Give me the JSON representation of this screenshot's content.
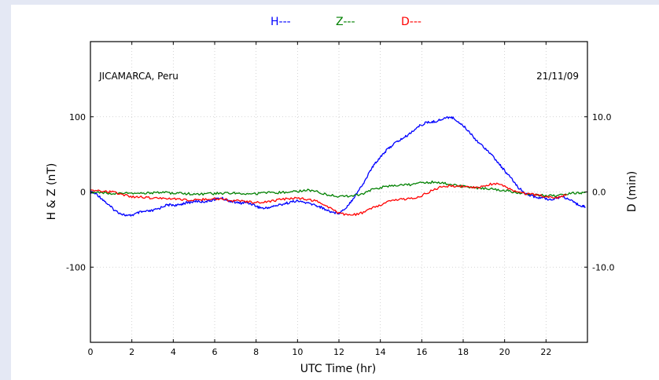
{
  "chart_data": {
    "type": "line",
    "station": "JICAMARCA, Peru",
    "date": "21/11/09",
    "xlabel": "UTC Time (hr)",
    "ylabel_left": "H & Z (nT)",
    "ylabel_right": "D (min)",
    "xlim": [
      0,
      24
    ],
    "ylim_left": [
      -200,
      200
    ],
    "ylim_right": [
      -20,
      20
    ],
    "x_ticks": [
      "0",
      "2",
      "4",
      "6",
      "8",
      "10",
      "12",
      "14",
      "16",
      "18",
      "20",
      "22"
    ],
    "y_ticks_left": [
      "100",
      "0",
      "-100"
    ],
    "y_ticks_right": [
      "10.0",
      "0.0",
      "-10.0"
    ],
    "grid": true,
    "legend_placement": "top-center",
    "series": [
      {
        "name": "H---",
        "color": "#0000ff",
        "axis": "left",
        "x": [
          0,
          0.3,
          0.6,
          0.9,
          1.2,
          1.5,
          1.8,
          2.1,
          2.4,
          2.7,
          3.0,
          3.3,
          3.6,
          3.9,
          4.2,
          4.5,
          4.8,
          5.1,
          5.4,
          5.7,
          6.0,
          6.3,
          6.6,
          6.9,
          7.2,
          7.5,
          7.8,
          8.1,
          8.4,
          8.7,
          9.0,
          9.3,
          9.6,
          9.9,
          10.2,
          10.5,
          10.8,
          11.1,
          11.4,
          11.7,
          12.0,
          12.3,
          12.6,
          12.9,
          13.2,
          13.5,
          13.8,
          14.1,
          14.4,
          14.7,
          15.0,
          15.3,
          15.6,
          15.9,
          16.2,
          16.5,
          16.8,
          17.1,
          17.4,
          17.7,
          18.0,
          18.3,
          18.6,
          18.9,
          19.2,
          19.5,
          19.8,
          20.1,
          20.4,
          20.7,
          21.0,
          21.3,
          21.6,
          21.9,
          22.2,
          22.5,
          22.8,
          23.1,
          23.4,
          23.7,
          23.9
        ],
        "values": [
          0,
          -3,
          -10,
          -18,
          -25,
          -29,
          -32,
          -30,
          -27,
          -26,
          -25,
          -22,
          -18,
          -17,
          -18,
          -15,
          -14,
          -12,
          -13,
          -12,
          -10,
          -8,
          -11,
          -13,
          -15,
          -14,
          -16,
          -20,
          -22,
          -20,
          -18,
          -16,
          -14,
          -12,
          -13,
          -15,
          -17,
          -20,
          -24,
          -27,
          -28,
          -22,
          -12,
          0,
          12,
          28,
          40,
          50,
          58,
          65,
          70,
          75,
          82,
          88,
          92,
          93,
          95,
          98,
          100,
          95,
          88,
          80,
          70,
          62,
          55,
          45,
          35,
          25,
          15,
          5,
          -2,
          -5,
          -8,
          -8,
          -10,
          -8,
          -6,
          -10,
          -15,
          -18,
          -20
        ]
      },
      {
        "name": "Z---",
        "color": "#008000",
        "axis": "left",
        "x": [
          0,
          0.5,
          1.0,
          1.5,
          2.0,
          2.5,
          3.0,
          3.5,
          4.0,
          4.5,
          5.0,
          5.5,
          6.0,
          6.5,
          7.0,
          7.5,
          8.0,
          8.5,
          9.0,
          9.5,
          10.0,
          10.5,
          11.0,
          11.5,
          12.0,
          12.5,
          13.0,
          13.5,
          14.0,
          14.5,
          15.0,
          15.5,
          16.0,
          16.5,
          17.0,
          17.5,
          18.0,
          18.5,
          19.0,
          19.5,
          20.0,
          20.5,
          21.0,
          21.5,
          22.0,
          22.5,
          23.0,
          23.5,
          23.9
        ],
        "values": [
          0,
          -1,
          -2,
          -2,
          -2,
          -2,
          -1,
          -1,
          -2,
          -2,
          -3,
          -3,
          -2,
          -2,
          -1,
          -2,
          -2,
          -1,
          -1,
          0,
          1,
          3,
          0,
          -4,
          -6,
          -6,
          -4,
          2,
          6,
          8,
          9,
          10,
          12,
          13,
          12,
          9,
          7,
          6,
          5,
          4,
          2,
          0,
          -2,
          -4,
          -5,
          -5,
          -3,
          -1,
          -1
        ]
      },
      {
        "name": "D---",
        "color": "#ff0000",
        "axis": "right",
        "x": [
          0,
          0.5,
          1.0,
          1.5,
          2.0,
          2.5,
          3.0,
          3.5,
          4.0,
          4.5,
          5.0,
          5.5,
          6.0,
          6.5,
          7.0,
          7.5,
          8.0,
          8.5,
          9.0,
          9.5,
          10.0,
          10.5,
          11.0,
          11.5,
          12.0,
          12.5,
          13.0,
          13.5,
          14.0,
          14.5,
          15.0,
          15.5,
          16.0,
          16.5,
          17.0,
          17.5,
          18.0,
          18.5,
          19.0,
          19.5,
          20.0,
          20.5,
          21.0,
          21.5,
          22.0,
          22.5,
          23.0
        ],
        "values": [
          0.2,
          0.1,
          0,
          -0.3,
          -0.6,
          -0.7,
          -0.8,
          -0.8,
          -0.9,
          -1.0,
          -1.1,
          -1.0,
          -0.9,
          -1.0,
          -1.2,
          -1.3,
          -1.4,
          -1.3,
          -1.1,
          -0.9,
          -0.8,
          -1.0,
          -1.3,
          -2.0,
          -2.8,
          -3.1,
          -2.9,
          -2.3,
          -1.7,
          -1.2,
          -1.0,
          -0.8,
          -0.5,
          0.2,
          0.8,
          0.8,
          0.7,
          0.6,
          0.7,
          1.2,
          0.7,
          0.1,
          -0.2,
          -0.4,
          -0.6,
          -0.8,
          -0.3
        ]
      }
    ]
  }
}
